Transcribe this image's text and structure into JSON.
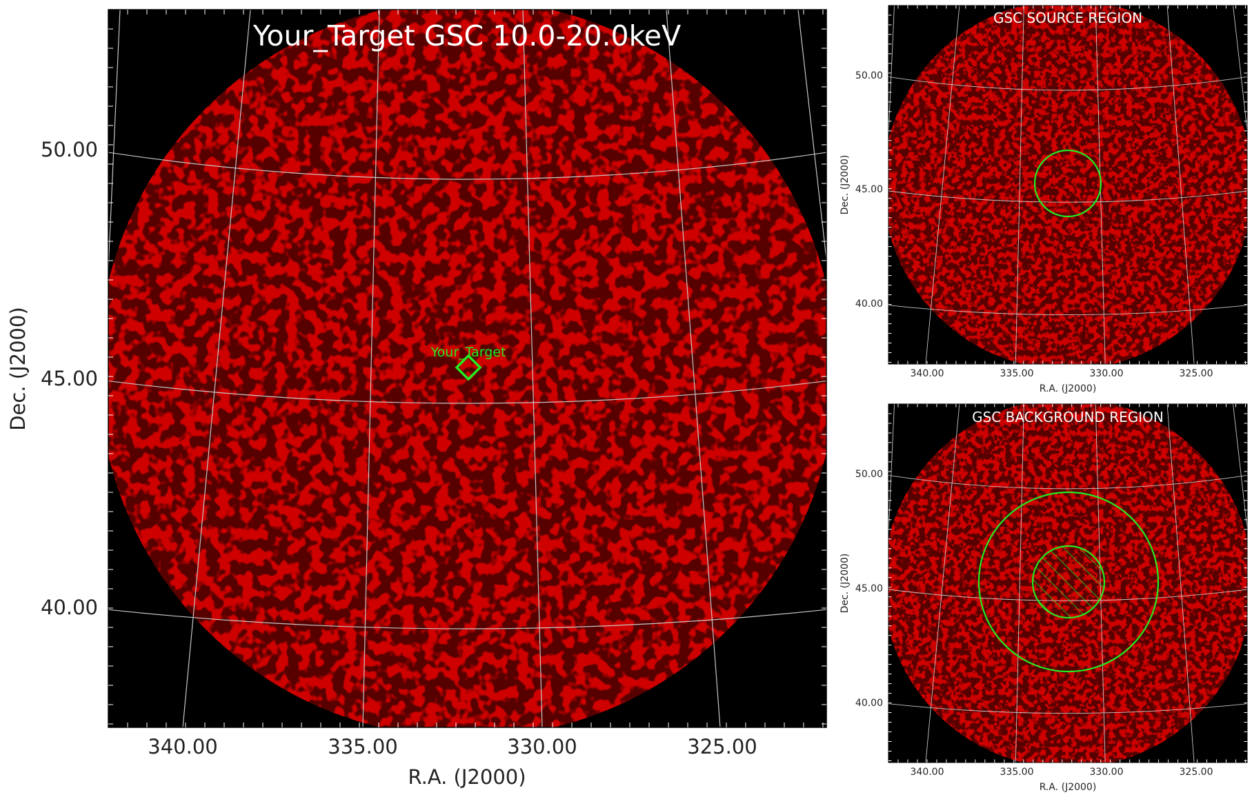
{
  "chart_data": [
    {
      "type": "heatmap",
      "title": "Your_Target GSC 10.0-20.0keV",
      "xlabel": "R.A. (J2000)",
      "ylabel": "Dec. (J2000)",
      "x_ticks": [
        "340.00",
        "335.00",
        "330.00",
        "325.00"
      ],
      "y_ticks": [
        "50.00",
        "45.00",
        "40.00"
      ],
      "grid": true,
      "target": {
        "label": "Your_Target",
        "ra": 332.0,
        "dec": 45.2,
        "marker": "diamond"
      }
    },
    {
      "type": "heatmap",
      "title": "GSC SOURCE REGION",
      "xlabel": "R.A. (J2000)",
      "ylabel": "Dec. (J2000)",
      "x_ticks": [
        "340.00",
        "335.00",
        "330.00",
        "325.00"
      ],
      "y_ticks": [
        "50.00",
        "45.00",
        "40.00"
      ],
      "grid": true,
      "regions": [
        {
          "shape": "circle",
          "ra": 332.0,
          "dec": 45.2
        }
      ]
    },
    {
      "type": "heatmap",
      "title": "GSC BACKGROUND REGION",
      "xlabel": "R.A. (J2000)",
      "ylabel": "Dec. (J2000)",
      "x_ticks": [
        "340.00",
        "335.00",
        "330.00",
        "325.00"
      ],
      "y_ticks": [
        "50.00",
        "45.00",
        "40.00"
      ],
      "grid": true,
      "regions": [
        {
          "shape": "annulus-outer",
          "ra": 332.0,
          "dec": 45.2
        },
        {
          "shape": "excluded-inner",
          "ra": 332.0,
          "dec": 45.2,
          "hatched": true
        }
      ]
    }
  ],
  "colors": {
    "sky_background": "#000000",
    "emission": "#a80000",
    "grid": "#c8c8c8",
    "region": "#22ee22",
    "title_text": "#ffffff"
  }
}
